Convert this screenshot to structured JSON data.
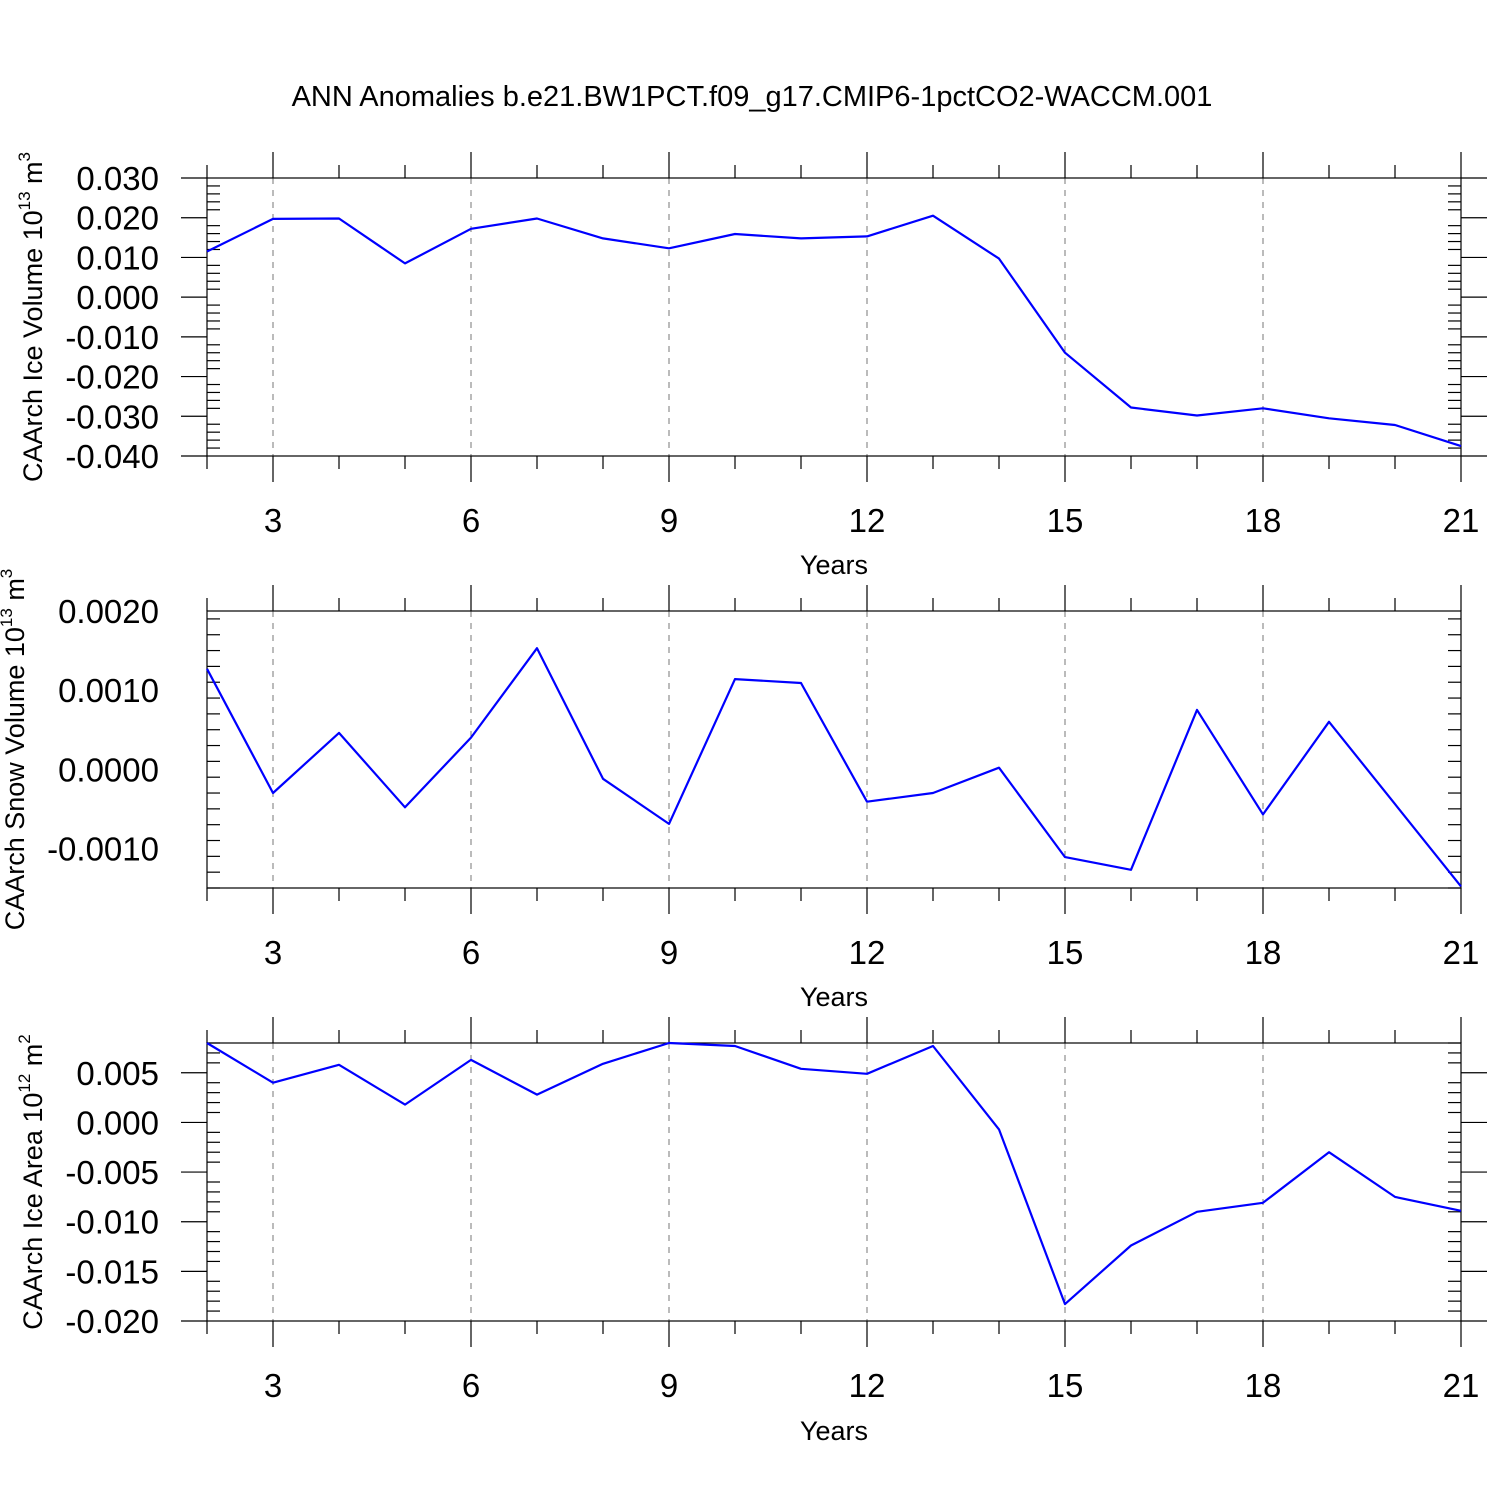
{
  "title": "ANN Anomalies b.e21.BW1PCT.f09_g17.CMIP6-1pctCO2-WACCM.001",
  "chart_data": [
    {
      "type": "line",
      "ylabel": "CAArch Ice Volume 10",
      "ylabel_exp": "13",
      "ylabel_unit": " m",
      "ylabel_unit_exp": "3",
      "xlabel": "Years",
      "xlim": [
        2,
        21
      ],
      "ylim": [
        -0.04,
        0.03
      ],
      "xticks": [
        3,
        6,
        9,
        12,
        15,
        18,
        21
      ],
      "yticks": [
        0.03,
        0.02,
        0.01,
        0.0,
        -0.01,
        -0.02,
        -0.03,
        -0.04
      ],
      "yticklabels": [
        "0.030",
        "0.020",
        "0.010",
        "0.000",
        "-0.010",
        "-0.020",
        "-0.030",
        "-0.040"
      ],
      "x": [
        2,
        3,
        4,
        5,
        6,
        7,
        8,
        9,
        10,
        11,
        12,
        13,
        14,
        15,
        16,
        17,
        18,
        19,
        20,
        21
      ],
      "series": [
        {
          "color": "#0000ff",
          "values": [
            0.0115,
            0.0197,
            0.0198,
            0.0085,
            0.0172,
            0.0198,
            0.0148,
            0.0123,
            0.0159,
            0.0148,
            0.0153,
            0.0205,
            0.0097,
            -0.014,
            -0.0278,
            -0.0298,
            -0.028,
            -0.0305,
            -0.0322,
            -0.0375
          ]
        }
      ],
      "grid": "vertical-dashed"
    },
    {
      "type": "line",
      "ylabel": "CAArch Snow Volume 10",
      "ylabel_exp": "13",
      "ylabel_unit": " m",
      "ylabel_unit_exp": "3",
      "xlabel": "Years",
      "xlim": [
        2,
        21
      ],
      "ylim": [
        -0.0015,
        0.002
      ],
      "xticks": [
        3,
        6,
        9,
        12,
        15,
        18,
        21
      ],
      "yticks": [
        0.002,
        0.001,
        0.0,
        -0.001
      ],
      "yticklabels": [
        "0.0020",
        "0.0010",
        "0.0000",
        "-0.0010"
      ],
      "x": [
        2,
        3,
        4,
        5,
        6,
        7,
        8,
        9,
        10,
        11,
        12,
        13,
        14,
        15,
        16,
        17,
        18,
        19,
        20,
        21
      ],
      "series": [
        {
          "color": "#0000ff",
          "values": [
            0.00127,
            -0.0003,
            0.00046,
            -0.00048,
            0.0004,
            0.00153,
            -0.00012,
            -0.00069,
            0.00114,
            0.00109,
            -0.00041,
            -0.0003,
            2e-05,
            -0.00111,
            -0.00127,
            0.00075,
            -0.00057,
            0.0006,
            -0.00044,
            -0.00148
          ]
        }
      ],
      "grid": "vertical-dashed"
    },
    {
      "type": "line",
      "ylabel": "CAArch Ice Area 10",
      "ylabel_exp": "12",
      "ylabel_unit": " m",
      "ylabel_unit_exp": "2",
      "xlabel": "Years",
      "xlim": [
        2,
        21
      ],
      "ylim": [
        -0.02,
        0.008
      ],
      "xticks": [
        3,
        6,
        9,
        12,
        15,
        18,
        21
      ],
      "yticks": [
        0.005,
        0.0,
        -0.005,
        -0.01,
        -0.015,
        -0.02
      ],
      "yticklabels": [
        "0.005",
        "0.000",
        "-0.005",
        "-0.010",
        "-0.015",
        "-0.020"
      ],
      "x": [
        2,
        3,
        4,
        5,
        6,
        7,
        8,
        9,
        10,
        11,
        12,
        13,
        14,
        15,
        16,
        17,
        18,
        19,
        20,
        21
      ],
      "series": [
        {
          "color": "#0000ff",
          "values": [
            0.008,
            0.004,
            0.0058,
            0.0018,
            0.0063,
            0.0028,
            0.0059,
            0.008,
            0.0077,
            0.0054,
            0.0049,
            0.0077,
            -0.0007,
            -0.0183,
            -0.0124,
            -0.009,
            -0.0081,
            -0.003,
            -0.0075,
            -0.0089
          ]
        }
      ],
      "grid": "vertical-dashed"
    }
  ]
}
